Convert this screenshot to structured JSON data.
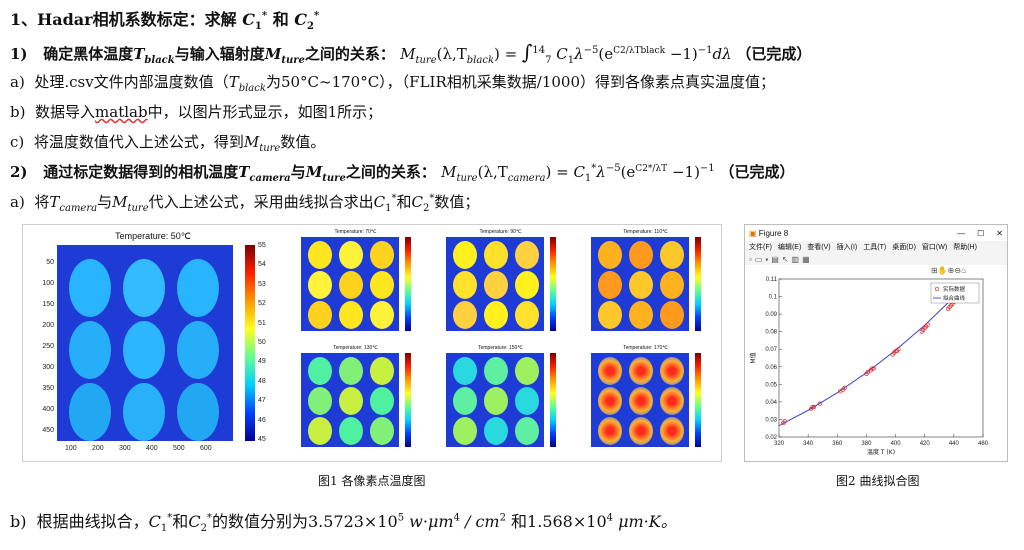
{
  "lines": {
    "l1": {
      "prefix": "1、Hadar相机系数标定：求解 ",
      "mid": " 和 "
    },
    "l2": {
      "num": "1)",
      "text": "确定黑体温度",
      "text2": "与输入辐射度",
      "text3": "之间的关系：",
      "done": "（已完成）"
    },
    "l3": {
      "num": "a)",
      "text": "处理.csv文件内部温度数值（",
      "text2": "为50°C~170°C），（FLIR相机采集数据/1000）得到各像素点真实温度值；"
    },
    "l4": {
      "num": "b)",
      "text": "数据导入",
      "link": "matlab",
      "text2": "中，以图片形式显示，如图1所示；"
    },
    "l5": {
      "num": "c)",
      "text": "将温度数值代入上述公式，得到",
      "text2": "数值。"
    },
    "l6": {
      "num": "2)",
      "text": "通过标定数据得到的相机温度",
      "text2": "与",
      "text3": "之间的关系：",
      "done": "（已完成）"
    },
    "l7": {
      "num": "a)",
      "text": "将",
      "text2": "与",
      "text3": "代入上述公式，采用曲线拟合求出",
      "text4": "和",
      "text5": "数值；"
    },
    "l8": {
      "num": "b)",
      "text": "根据曲线拟合，",
      "text2": "和",
      "text3": "的数值分别为3.5723×10",
      "exp1": "5",
      "unit1": " w·μm",
      "exp2": "4",
      "unit1b": " / cm",
      "exp3": "2",
      "text4": " 和1.568×10",
      "exp4": "4",
      "unit2": " μm·K。"
    }
  },
  "symbols": {
    "C1": "C",
    "C2": "C",
    "star": "*",
    "s1": "1",
    "s2": "2",
    "T": "T",
    "black": "black",
    "camera": "camera",
    "M": "M",
    "ture": "ture",
    "lambda": "λ",
    "integral": "∫",
    "low": "7",
    "high": "14"
  },
  "formula1": {
    "lhs": "(λ,T",
    "rhs": ") = ",
    "body": "C",
    "body2": "λ",
    "exp": "−5",
    "e": "(e",
    "frac_top": "C",
    "frac_bot": "λT",
    "tail": " −1)",
    "exp_tail": "−1",
    "dl": "dλ"
  },
  "formula2": {
    "lhs": "(λ,T",
    "rhs": ") = ",
    "body": "C",
    "body2": "λ",
    "exp": "−5",
    "e": "(e",
    "frac_top": "C",
    "frac_bot": "λT",
    "tail": " −1)",
    "exp_tail": "−1"
  },
  "fig1": {
    "main": {
      "title": "Temperature: 50℃",
      "yticks": [
        "50",
        "100",
        "150",
        "200",
        "250",
        "300",
        "350",
        "400",
        "450"
      ],
      "xticks": [
        "100",
        "200",
        "300",
        "400",
        "500",
        "600"
      ],
      "cticks": [
        "55",
        "54",
        "53",
        "52",
        "51",
        "50",
        "49",
        "48",
        "47",
        "46",
        "45"
      ]
    },
    "small": [
      {
        "title": "Temperature: 70℃"
      },
      {
        "title": "Temperature: 90℃"
      },
      {
        "title": "Temperature: 110℃"
      },
      {
        "title": "Temperature: 130℃"
      },
      {
        "title": "Temperature: 150℃"
      },
      {
        "title": "Temperature: 170℃"
      }
    ],
    "caption": "图1 各像素点温度图"
  },
  "fig2": {
    "window_title": "Figure 8",
    "menus": [
      "文件(F)",
      "编辑(E)",
      "查看(V)",
      "插入(I)",
      "工具(T)",
      "桌面(D)",
      "窗口(W)",
      "帮助(H)"
    ],
    "legend": [
      "实际数据",
      "拟合曲线"
    ],
    "ylabel": "M值",
    "xlabel": "温度 T (K)",
    "caption": "图2 曲线拟合图"
  },
  "chart_data": {
    "type": "scatter",
    "xlabel": "温度 T (K)",
    "ylabel": "M值",
    "xlim": [
      320,
      460
    ],
    "ylim": [
      0.02,
      0.11
    ],
    "xticks": [
      320,
      340,
      360,
      380,
      400,
      420,
      440,
      460
    ],
    "yticks": [
      0.02,
      0.03,
      0.04,
      0.05,
      0.06,
      0.07,
      0.08,
      0.09,
      0.1,
      0.11
    ],
    "series": [
      {
        "name": "实际数据",
        "x": [
          323,
          324,
          342,
          343,
          344,
          348,
          362,
          364,
          365,
          380,
          381,
          383,
          384,
          385,
          398,
          399,
          400,
          401,
          402,
          418,
          419,
          420,
          421,
          422,
          436,
          437,
          438,
          439,
          440
        ],
        "y": [
          0.028,
          0.029,
          0.036,
          0.037,
          0.037,
          0.039,
          0.046,
          0.047,
          0.048,
          0.056,
          0.057,
          0.058,
          0.059,
          0.059,
          0.067,
          0.068,
          0.069,
          0.069,
          0.07,
          0.08,
          0.081,
          0.082,
          0.083,
          0.084,
          0.093,
          0.094,
          0.095,
          0.096,
          0.097
        ]
      },
      {
        "name": "拟合曲线",
        "x": [
          320,
          340,
          360,
          380,
          400,
          420,
          440
        ],
        "y": [
          0.0265,
          0.0352,
          0.0452,
          0.0566,
          0.0694,
          0.0837,
          0.0996
        ]
      }
    ],
    "legend": "top-right"
  }
}
